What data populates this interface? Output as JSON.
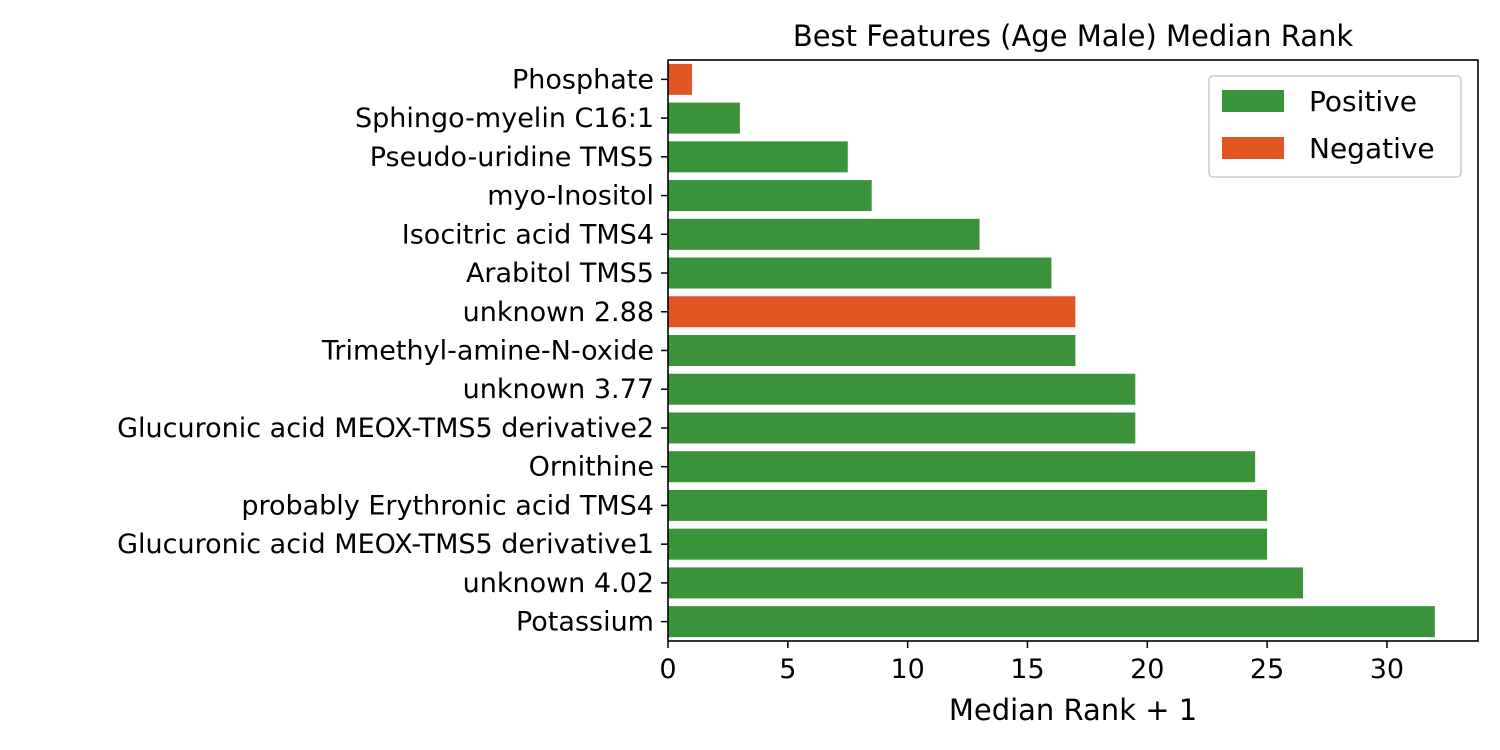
{
  "chart_data": {
    "type": "bar",
    "orientation": "horizontal",
    "title": "Best Features (Age Male) Median Rank",
    "xlabel": "Median Rank + 1",
    "ylabel": "",
    "xlim": [
      0,
      33.8
    ],
    "xticks": [
      0,
      5,
      10,
      15,
      20,
      25,
      30
    ],
    "xtick_labels": [
      "0",
      "5",
      "10",
      "15",
      "20",
      "25",
      "30"
    ],
    "grid": false,
    "legend_position": "top-right",
    "colors": {
      "Positive": "#3a923a",
      "Negative": "#e05522"
    },
    "legend": [
      {
        "label": "Positive",
        "color": "#3a923a"
      },
      {
        "label": "Negative",
        "color": "#e05522"
      }
    ],
    "categories": [
      "Phosphate",
      "Sphingo-myelin C16:1",
      "Pseudo-uridine TMS5",
      "myo-Inositol",
      "Isocitric acid TMS4",
      "Arabitol TMS5",
      "unknown 2.88",
      "Trimethyl-amine-N-oxide",
      "unknown 3.77",
      "Glucuronic acid MEOX-TMS5 derivative2",
      "Ornithine",
      "probably Erythronic acid TMS4",
      "Glucuronic acid MEOX-TMS5 derivative1",
      "unknown 4.02",
      "Potassium"
    ],
    "values": [
      1,
      3,
      7.5,
      8.5,
      13,
      16,
      17,
      17,
      19.5,
      19.5,
      24.5,
      25,
      25,
      26.5,
      32
    ],
    "signs": [
      "Negative",
      "Positive",
      "Positive",
      "Positive",
      "Positive",
      "Positive",
      "Negative",
      "Positive",
      "Positive",
      "Positive",
      "Positive",
      "Positive",
      "Positive",
      "Positive",
      "Positive"
    ]
  }
}
